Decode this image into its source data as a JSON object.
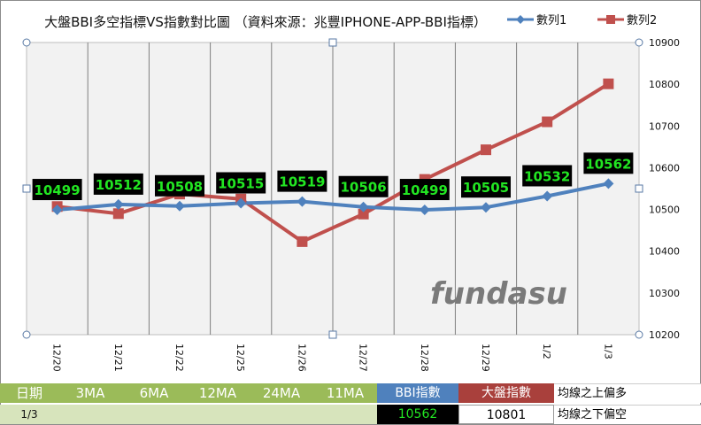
{
  "chart_data": {
    "type": "line",
    "title": "大盤BBI多空指標VS指數對比圖 （資料來源：兆豐IPHONE-APP-BBI指標）",
    "categories": [
      "12/20",
      "12/21",
      "12/22",
      "12/25",
      "12/26",
      "12/27",
      "12/28",
      "12/29",
      "1/2",
      "1/3"
    ],
    "series": [
      {
        "name": "數列1",
        "color": "#4f81bd",
        "values": [
          10499,
          10512,
          10508,
          10515,
          10519,
          10506,
          10499,
          10505,
          10532,
          10562
        ],
        "labels": [
          "10499",
          "10512",
          "10508",
          "10515",
          "10519",
          "10506",
          "10499",
          "10505",
          "10532",
          "10562"
        ]
      },
      {
        "name": "數列2",
        "color": "#c0504d",
        "values": [
          10507,
          10490,
          10537,
          10525,
          10423,
          10489,
          10572,
          10643,
          10710,
          10801
        ]
      }
    ],
    "yaxis_side": "right",
    "ylim": [
      10200,
      10900
    ],
    "yticks": [
      "10200",
      "10300",
      "10400",
      "10500",
      "10600",
      "10700",
      "10800",
      "10900"
    ],
    "grid": "vertical",
    "legend_position": "top-right",
    "watermark": "fundasu",
    "plot_background": "#f2f2f2"
  },
  "table": {
    "headers": [
      "日期",
      "3MA",
      "6MA",
      "12MA",
      "24MA",
      "11MA"
    ],
    "bbi_header": "BBI指數",
    "index_header": "大盤指數",
    "note1": "均線之上偏多",
    "date_value": "1/3",
    "bbi_value": "10562",
    "index_value": "10801",
    "note2": "均線之下偏空"
  }
}
